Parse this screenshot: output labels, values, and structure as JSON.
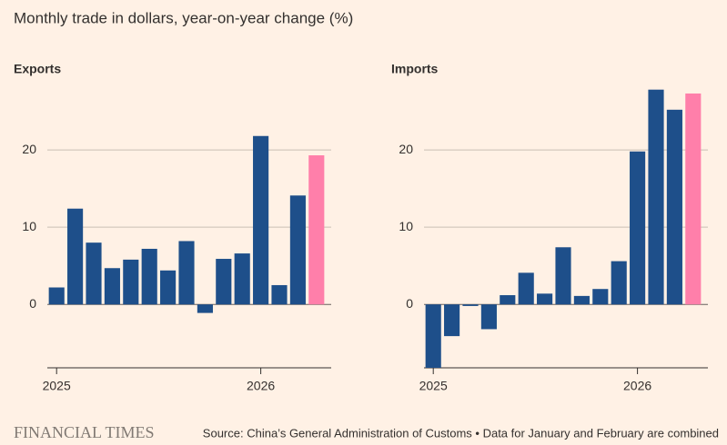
{
  "title": "Monthly trade in dollars, year-on-year change (%)",
  "source": "Source: China’s General Administration of Customs • Data for January and February are combined",
  "logo": "FINANCIAL TIMES",
  "chart_data": [
    {
      "type": "bar",
      "title": "Exports",
      "categories": [
        "2025",
        null,
        null,
        null,
        null,
        null,
        null,
        null,
        null,
        null,
        null,
        "2026",
        null,
        null,
        null
      ],
      "values": [
        2.2,
        12.4,
        8.0,
        4.7,
        5.8,
        7.2,
        4.4,
        8.2,
        -1.1,
        5.9,
        6.6,
        21.8,
        2.5,
        14.1,
        19.3
      ],
      "colors": [
        "#1e4f8a",
        "#1e4f8a",
        "#1e4f8a",
        "#1e4f8a",
        "#1e4f8a",
        "#1e4f8a",
        "#1e4f8a",
        "#1e4f8a",
        "#1e4f8a",
        "#1e4f8a",
        "#1e4f8a",
        "#1e4f8a",
        "#1e4f8a",
        "#1e4f8a",
        "#ff7faa"
      ],
      "ylim": [
        -8.2,
        28
      ],
      "yticks": [
        0,
        10,
        20
      ],
      "grid": true
    },
    {
      "type": "bar",
      "title": "Imports",
      "categories": [
        "2025",
        null,
        null,
        null,
        null,
        null,
        null,
        null,
        null,
        null,
        null,
        "2026",
        null,
        null,
        null
      ],
      "values": [
        -8.2,
        -4.1,
        -0.2,
        -3.2,
        1.2,
        4.1,
        1.4,
        7.4,
        1.1,
        2.0,
        5.6,
        19.8,
        27.8,
        25.2,
        27.3
      ],
      "colors": [
        "#1e4f8a",
        "#1e4f8a",
        "#1e4f8a",
        "#1e4f8a",
        "#1e4f8a",
        "#1e4f8a",
        "#1e4f8a",
        "#1e4f8a",
        "#1e4f8a",
        "#1e4f8a",
        "#1e4f8a",
        "#1e4f8a",
        "#1e4f8a",
        "#1e4f8a",
        "#ff7faa"
      ],
      "ylim": [
        -8.2,
        28
      ],
      "yticks": [
        0,
        10,
        20
      ],
      "grid": true
    }
  ]
}
